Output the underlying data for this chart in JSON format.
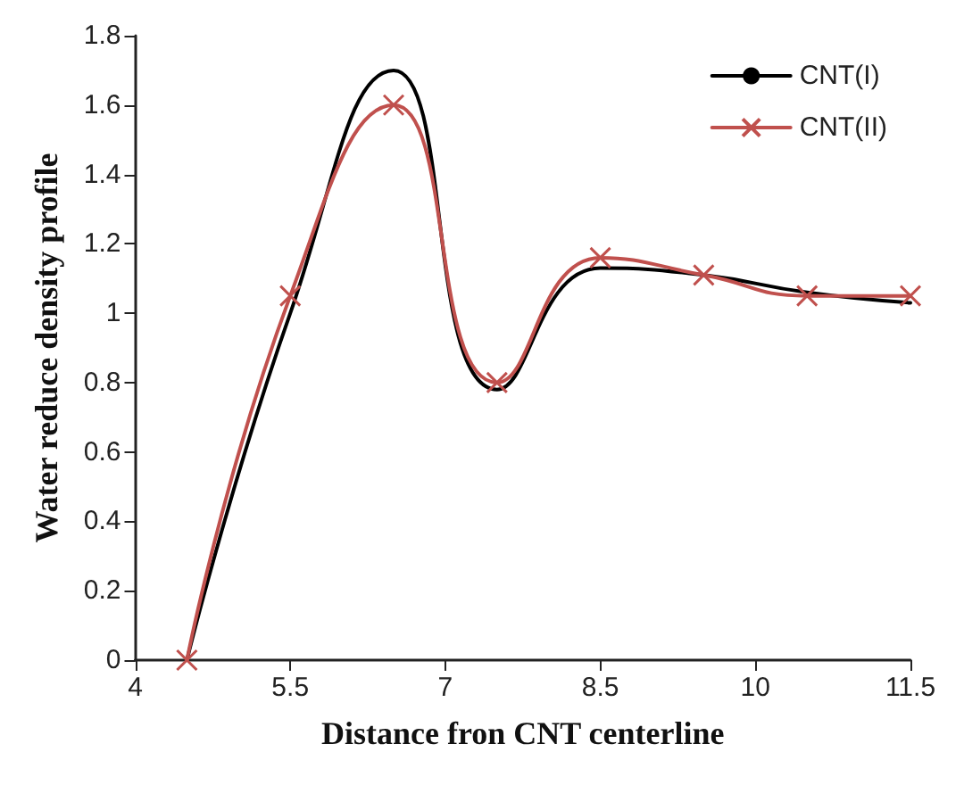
{
  "chart_data": {
    "type": "line",
    "xlabel": "Distance fron CNT centerline",
    "ylabel": "Water reduce density profile",
    "x": [
      4.5,
      5.5,
      6.5,
      7.5,
      8.5,
      9.5,
      10.5,
      11.5
    ],
    "series": [
      {
        "name": "CNT(I)",
        "color": "#000000",
        "marker": "none",
        "values": [
          0,
          1.0,
          1.7,
          0.78,
          1.13,
          1.11,
          1.06,
          1.03
        ]
      },
      {
        "name": "CNT(II)",
        "color": "#c0504d",
        "marker": "cross",
        "values": [
          0,
          1.05,
          1.6,
          0.8,
          1.16,
          1.11,
          1.05,
          1.05
        ]
      }
    ],
    "xlim": [
      4,
      11.5
    ],
    "xticks": [
      4,
      5.5,
      7,
      8.5,
      10,
      11.5
    ],
    "ylim": [
      0,
      1.8
    ],
    "yticks": [
      0,
      0.2,
      0.4,
      0.6,
      0.8,
      1,
      1.2,
      1.4,
      1.6,
      1.8
    ],
    "grid": false,
    "legend": "top right",
    "line_style": "solid"
  }
}
